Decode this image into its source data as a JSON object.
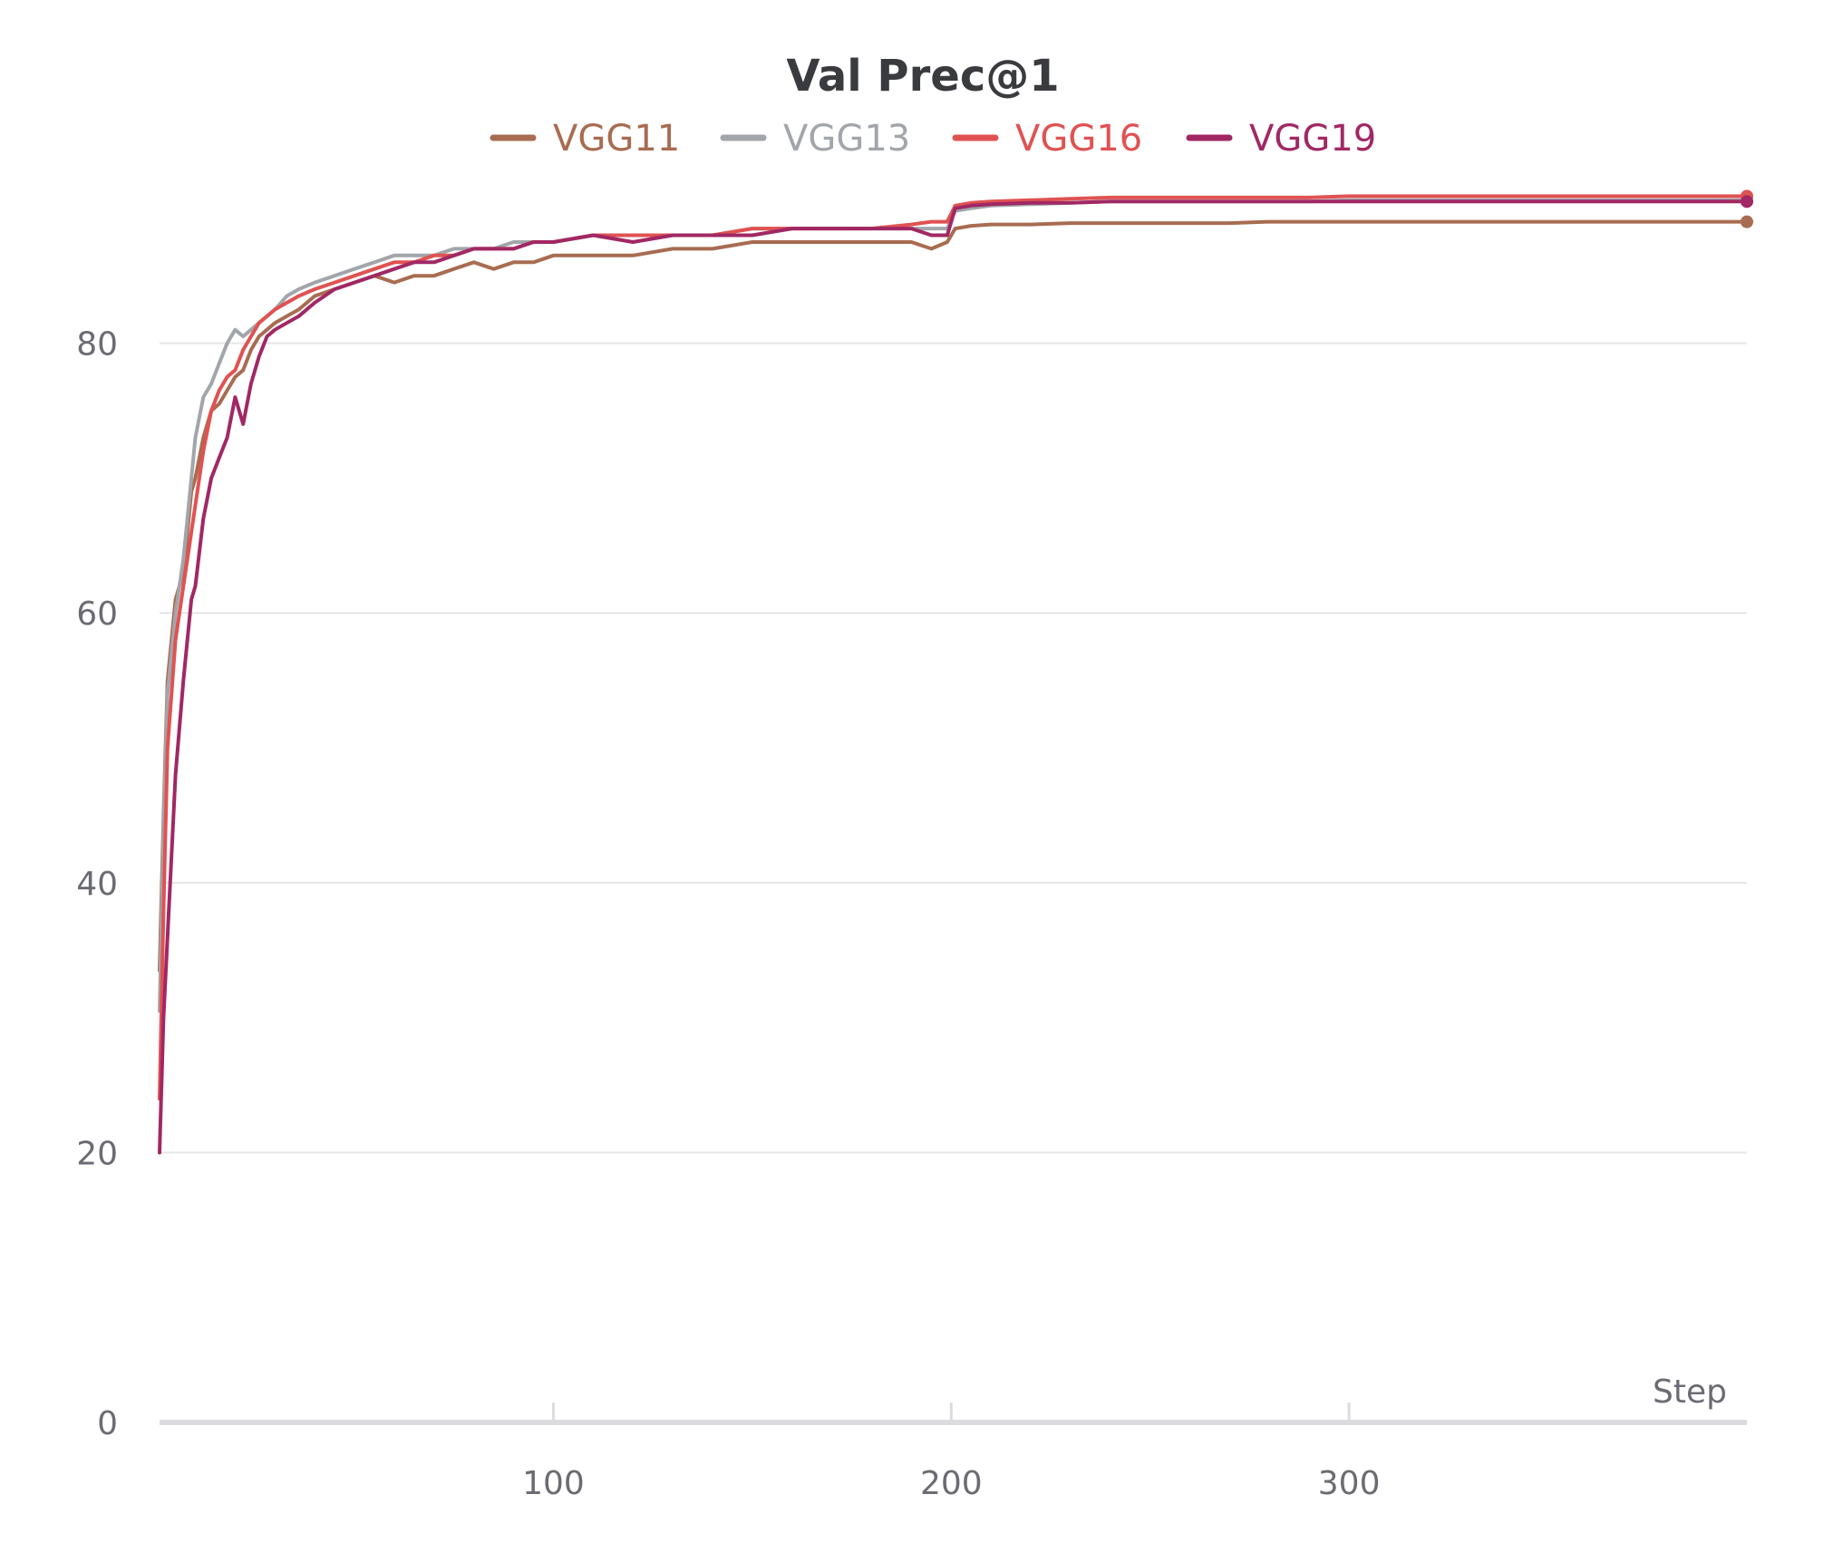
{
  "chart_data": {
    "type": "line",
    "title": "Val Prec@1",
    "xlabel": "Step",
    "ylabel": "",
    "xlim": [
      1,
      400
    ],
    "ylim": [
      0,
      92
    ],
    "xticks": [
      100,
      200,
      300
    ],
    "yticks": [
      0,
      20,
      40,
      60,
      80
    ],
    "grid": "horizontal",
    "legend_position": "top-center",
    "series": [
      {
        "name": "VGG11",
        "color": "#a86c51",
        "x": [
          1,
          2,
          3,
          5,
          7,
          9,
          10,
          12,
          14,
          16,
          18,
          20,
          22,
          24,
          26,
          28,
          30,
          33,
          36,
          40,
          45,
          50,
          55,
          60,
          65,
          70,
          75,
          80,
          85,
          90,
          95,
          100,
          110,
          120,
          130,
          140,
          150,
          160,
          170,
          180,
          190,
          195,
          199,
          201,
          205,
          210,
          220,
          230,
          240,
          250,
          260,
          270,
          280,
          290,
          300,
          320,
          340,
          360,
          380,
          400
        ],
        "values": [
          33.5,
          45,
          55,
          61,
          63,
          69,
          70,
          73,
          75,
          75.5,
          76.5,
          77.5,
          78,
          79.5,
          80.5,
          81,
          81.5,
          82,
          82.5,
          83.5,
          84,
          84.5,
          85,
          84.5,
          85,
          85,
          85.5,
          86,
          85.5,
          86,
          86,
          86.5,
          86.5,
          86.5,
          87,
          87,
          87.5,
          87.5,
          87.5,
          87.5,
          87.5,
          87,
          87.5,
          88.5,
          88.7,
          88.8,
          88.8,
          88.9,
          88.9,
          88.9,
          88.9,
          88.9,
          89,
          89,
          89,
          89,
          89,
          89,
          89,
          89
        ]
      },
      {
        "name": "VGG13",
        "color": "#a2a6ab",
        "x": [
          1,
          2,
          3,
          5,
          7,
          9,
          10,
          12,
          14,
          16,
          18,
          20,
          22,
          24,
          26,
          28,
          30,
          33,
          36,
          40,
          45,
          50,
          55,
          60,
          65,
          70,
          75,
          80,
          85,
          90,
          95,
          100,
          110,
          120,
          130,
          140,
          150,
          160,
          170,
          180,
          190,
          195,
          199,
          201,
          205,
          210,
          220,
          230,
          240,
          250,
          260,
          270,
          280,
          290,
          300,
          320,
          340,
          360,
          380,
          400
        ],
        "values": [
          30.5,
          44,
          54,
          60,
          64,
          70,
          73,
          76,
          77,
          78.5,
          80,
          81,
          80.5,
          81,
          81.5,
          82,
          82.5,
          83.5,
          84,
          84.5,
          85,
          85.5,
          86,
          86.5,
          86.5,
          86.5,
          87,
          87,
          87,
          87.5,
          87.5,
          87.5,
          88,
          88,
          88,
          88,
          88.5,
          88.5,
          88.5,
          88.5,
          88.5,
          88.5,
          88.5,
          89.8,
          90,
          90.2,
          90.3,
          90.4,
          90.5,
          90.5,
          90.5,
          90.5,
          90.5,
          90.5,
          90.6,
          90.6,
          90.6,
          90.6,
          90.6,
          90.6
        ]
      },
      {
        "name": "VGG16",
        "color": "#e05252",
        "x": [
          1,
          2,
          3,
          5,
          7,
          9,
          10,
          12,
          14,
          16,
          18,
          20,
          22,
          24,
          26,
          28,
          30,
          33,
          36,
          40,
          45,
          50,
          55,
          60,
          65,
          70,
          75,
          80,
          85,
          90,
          95,
          100,
          110,
          120,
          130,
          140,
          150,
          160,
          170,
          180,
          190,
          195,
          199,
          201,
          205,
          210,
          220,
          230,
          240,
          250,
          260,
          270,
          280,
          290,
          300,
          320,
          340,
          360,
          380,
          400
        ],
        "values": [
          24,
          38,
          50,
          58,
          62,
          66,
          68,
          72,
          75,
          76.5,
          77.5,
          78,
          79.5,
          80.5,
          81.5,
          82,
          82.5,
          83,
          83.5,
          84,
          84.5,
          85,
          85.5,
          86,
          86,
          86.5,
          86.5,
          87,
          87,
          87,
          87.5,
          87.5,
          88,
          88,
          88,
          88,
          88.5,
          88.5,
          88.5,
          88.5,
          88.8,
          89,
          89,
          90.2,
          90.4,
          90.5,
          90.6,
          90.7,
          90.8,
          90.8,
          90.8,
          90.8,
          90.8,
          90.8,
          90.9,
          90.9,
          90.9,
          90.9,
          90.9,
          90.9
        ]
      },
      {
        "name": "VGG19",
        "color": "#a12864",
        "x": [
          1,
          2,
          3,
          5,
          7,
          9,
          10,
          12,
          14,
          16,
          18,
          20,
          22,
          24,
          26,
          28,
          30,
          33,
          36,
          40,
          45,
          50,
          55,
          60,
          65,
          70,
          75,
          80,
          85,
          90,
          95,
          100,
          110,
          120,
          130,
          140,
          150,
          160,
          170,
          180,
          190,
          195,
          199,
          201,
          205,
          210,
          220,
          230,
          240,
          250,
          260,
          270,
          280,
          290,
          300,
          320,
          340,
          360,
          380,
          400
        ],
        "values": [
          20,
          30,
          36,
          48,
          55,
          61,
          62,
          67,
          70,
          71.5,
          73,
          76,
          74,
          77,
          79,
          80.5,
          81,
          81.5,
          82,
          83,
          84,
          84.5,
          85,
          85.5,
          86,
          86,
          86.5,
          87,
          87,
          87,
          87.5,
          87.5,
          88,
          87.5,
          88,
          88,
          88,
          88.5,
          88.5,
          88.5,
          88.5,
          88,
          88,
          90,
          90.2,
          90.3,
          90.4,
          90.4,
          90.5,
          90.5,
          90.5,
          90.5,
          90.5,
          90.5,
          90.5,
          90.5,
          90.5,
          90.5,
          90.5,
          90.5
        ]
      }
    ]
  }
}
